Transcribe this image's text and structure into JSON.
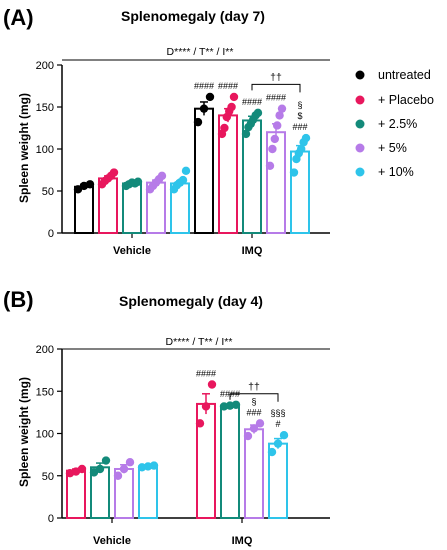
{
  "panels": [
    {
      "label": "(A)",
      "title": "Splenomegaly (day 7)",
      "stats": "D**** / T** / I**"
    },
    {
      "label": "(B)",
      "title": "Splenomegaly (day 4)",
      "stats": "D**** / T** / I**"
    }
  ],
  "legend": {
    "items": [
      {
        "label": "untreated",
        "color": "#000000"
      },
      {
        "label": "+ Placebo",
        "color": "#e8175d"
      },
      {
        "label": "+ 2.5%",
        "color": "#138a7a"
      },
      {
        "label": "+ 5%",
        "color": "#b67be8"
      },
      {
        "label": "+ 10%",
        "color": "#2ec4ea"
      }
    ]
  },
  "chart_data": [
    {
      "type": "bar",
      "title": "Splenomegaly (day 7)",
      "ylabel": "Spleen weight (mg)",
      "xlabel": "",
      "ylim": [
        0,
        200
      ],
      "yticks": [
        0,
        50,
        100,
        150,
        200
      ],
      "categories": [
        "Vehicle",
        "IMQ"
      ],
      "stats_annotation": "D**** / T** / I**",
      "series": [
        {
          "name": "untreated",
          "color": "#000000",
          "values": [
            55,
            148
          ],
          "sem": [
            3,
            8
          ],
          "points": [
            [
              52,
              56,
              58
            ],
            [
              132,
              148,
              162
            ]
          ]
        },
        {
          "name": "+ Placebo",
          "color": "#e8175d",
          "values": [
            65,
            140
          ],
          "sem": [
            3,
            8
          ],
          "points": [
            [
              58,
              62,
              65,
              68,
              72
            ],
            [
              118,
              125,
              138,
              145,
              150,
              162
            ]
          ]
        },
        {
          "name": "+ 2.5%",
          "color": "#138a7a",
          "values": [
            59,
            134
          ],
          "sem": [
            2,
            5
          ],
          "points": [
            [
              56,
              58,
              60,
              59,
              61
            ],
            [
              118,
              126,
              130,
              135,
              140,
              143
            ]
          ]
        },
        {
          "name": "+ 5%",
          "color": "#b67be8",
          "values": [
            60,
            120
          ],
          "sem": [
            3,
            10
          ],
          "points": [
            [
              52,
              56,
              60,
              64,
              68
            ],
            [
              80,
              100,
              112,
              128,
              140,
              148
            ]
          ]
        },
        {
          "name": "+ 10%",
          "color": "#2ec4ea",
          "values": [
            59,
            97
          ],
          "sem": [
            3,
            7
          ],
          "points": [
            [
              52,
              57,
              60,
              63,
              74
            ],
            [
              72,
              88,
              95,
              100,
              108,
              113
            ]
          ]
        }
      ],
      "annotations": [
        {
          "series": "untreated",
          "category": "IMQ",
          "lines": [
            "####"
          ]
        },
        {
          "series": "+ Placebo",
          "category": "IMQ",
          "lines": [
            "####"
          ]
        },
        {
          "series": "+ 2.5%",
          "category": "IMQ",
          "lines": [
            "####"
          ]
        },
        {
          "series": "+ 5%",
          "category": "IMQ",
          "lines": [
            "####"
          ]
        },
        {
          "series": "+ 10%",
          "category": "IMQ",
          "lines": [
            "§",
            "$",
            "###"
          ]
        }
      ],
      "bracket": {
        "from": "+ 2.5%",
        "to": "+ 10%",
        "label": "††"
      }
    },
    {
      "type": "bar",
      "title": "Splenomegaly (day 4)",
      "ylabel": "Spleen weight (mg)",
      "xlabel": "",
      "ylim": [
        0,
        200
      ],
      "yticks": [
        0,
        50,
        100,
        150,
        200
      ],
      "categories": [
        "Vehicle",
        "IMQ"
      ],
      "stats_annotation": "D**** / T** / I**",
      "series": [
        {
          "name": "+ Placebo",
          "color": "#e8175d",
          "values": [
            56,
            135
          ],
          "sem": [
            2,
            12
          ],
          "points": [
            [
              53,
              55,
              58
            ],
            [
              112,
              132,
              158
            ]
          ]
        },
        {
          "name": "+ 2.5%",
          "color": "#138a7a",
          "values": [
            60,
            133
          ],
          "sem": [
            5,
            1
          ],
          "points": [
            [
              54,
              58,
              68
            ],
            [
              132,
              133,
              134
            ]
          ]
        },
        {
          "name": "+ 5%",
          "color": "#b67be8",
          "values": [
            58,
            105
          ],
          "sem": [
            5,
            5
          ],
          "points": [
            [
              50,
              58,
              66
            ],
            [
              97,
              106,
              112
            ]
          ]
        },
        {
          "name": "+ 10%",
          "color": "#2ec4ea",
          "values": [
            61,
            88
          ],
          "sem": [
            1,
            6
          ],
          "points": [
            [
              60,
              61,
              62
            ],
            [
              78,
              88,
              98
            ]
          ]
        }
      ],
      "annotations": [
        {
          "series": "+ Placebo",
          "category": "IMQ",
          "lines": [
            "####"
          ]
        },
        {
          "series": "+ 2.5%",
          "category": "IMQ",
          "lines": [
            "####"
          ]
        },
        {
          "series": "+ 5%",
          "category": "IMQ",
          "lines": [
            "§",
            "###"
          ]
        },
        {
          "series": "+ 10%",
          "category": "IMQ",
          "lines": [
            "§§§",
            "#"
          ]
        }
      ],
      "bracket": {
        "from": "+ 2.5%",
        "to": "+ 10%",
        "label": "††"
      }
    }
  ]
}
